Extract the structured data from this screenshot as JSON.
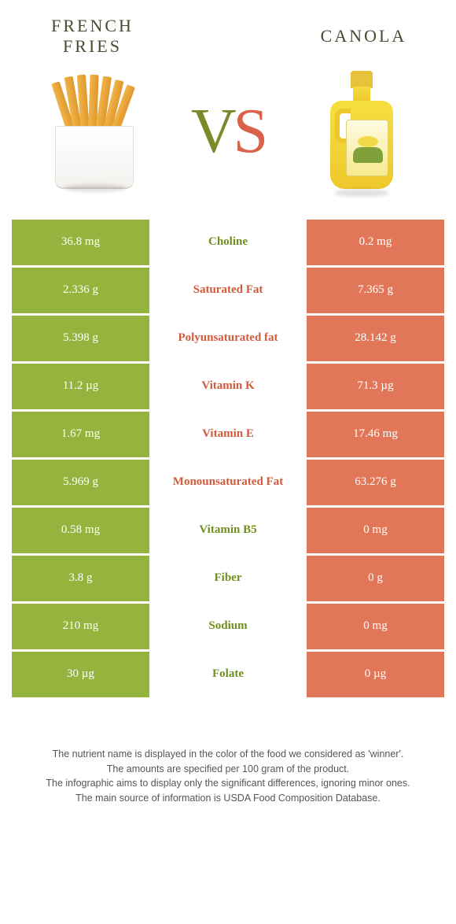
{
  "header": {
    "left_title_line1": "FRENCH",
    "left_title_line2": "FRIES",
    "right_title": "CANOLA",
    "vs_v": "V",
    "vs_s": "S"
  },
  "colors": {
    "left_bg": "#94b43e",
    "right_bg": "#e17758",
    "left_text": "#6f8e1f",
    "right_text": "#d05a3c"
  },
  "rows": [
    {
      "left": "36.8 mg",
      "name": "Choline",
      "right": "0.2 mg",
      "winner": "left"
    },
    {
      "left": "2.336 g",
      "name": "Saturated Fat",
      "right": "7.365 g",
      "winner": "right"
    },
    {
      "left": "5.398 g",
      "name": "Polyunsaturated fat",
      "right": "28.142 g",
      "winner": "right"
    },
    {
      "left": "11.2 µg",
      "name": "Vitamin K",
      "right": "71.3 µg",
      "winner": "right"
    },
    {
      "left": "1.67 mg",
      "name": "Vitamin E",
      "right": "17.46 mg",
      "winner": "right"
    },
    {
      "left": "5.969 g",
      "name": "Monounsaturated Fat",
      "right": "63.276 g",
      "winner": "right"
    },
    {
      "left": "0.58 mg",
      "name": "Vitamin B5",
      "right": "0 mg",
      "winner": "left"
    },
    {
      "left": "3.8 g",
      "name": "Fiber",
      "right": "0 g",
      "winner": "left"
    },
    {
      "left": "210 mg",
      "name": "Sodium",
      "right": "0 mg",
      "winner": "left"
    },
    {
      "left": "30 µg",
      "name": "Folate",
      "right": "0 µg",
      "winner": "left"
    }
  ],
  "footer": {
    "line1": "The nutrient name is displayed in the color of the food we considered as 'winner'.",
    "line2": "The amounts are specified per 100 gram of the product.",
    "line3": "The infographic aims to display only the significant differences, ignoring minor ones.",
    "line4": "The main source of information is USDA Food Composition Database."
  }
}
